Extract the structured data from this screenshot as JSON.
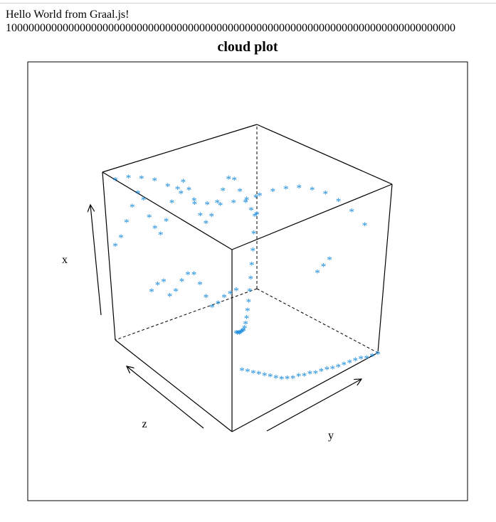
{
  "page": {
    "line1": "Hello World from Graal.js!",
    "line2": "1000000000000000000000000000000000000000000000000000000000000000000000000000000"
  },
  "chart_data": {
    "type": "scatter",
    "subtype": "3d-cloud",
    "title": "cloud plot",
    "xlabel": "x",
    "ylabel": "y",
    "zlabel": "z",
    "marker": "*",
    "marker_color": "#1f8fe0",
    "box": "wireframe cube, hidden edges dashed",
    "ticks": "none (arrows only)",
    "points": [
      {
        "y": 0.0,
        "z": 1.0,
        "x": 0.58
      },
      {
        "y": 0.0,
        "z": 0.96,
        "x": 0.62
      },
      {
        "y": 0.0,
        "z": 0.92,
        "x": 0.7
      },
      {
        "y": 0.0,
        "z": 0.88,
        "x": 0.78
      },
      {
        "y": 0.0,
        "z": 0.84,
        "x": 0.85
      },
      {
        "y": 0.0,
        "z": 0.8,
        "x": 0.8
      },
      {
        "y": 0.0,
        "z": 0.76,
        "x": 0.68
      },
      {
        "y": 0.0,
        "z": 0.72,
        "x": 0.6
      },
      {
        "y": 0.0,
        "z": 0.68,
        "x": 0.55
      },
      {
        "y": 0.0,
        "z": 0.64,
        "x": 0.62
      },
      {
        "y": 0.0,
        "z": 0.6,
        "x": 0.72
      },
      {
        "y": 0.0,
        "z": 0.56,
        "x": 0.79
      },
      {
        "y": 0.0,
        "z": 0.52,
        "x": 0.82
      },
      {
        "y": 0.0,
        "z": 0.48,
        "x": 0.76
      },
      {
        "y": 0.0,
        "z": 0.44,
        "x": 0.66
      },
      {
        "y": 0.0,
        "z": 0.4,
        "x": 0.58
      },
      {
        "y": 0.0,
        "z": 0.36,
        "x": 0.52
      },
      {
        "y": 0.0,
        "z": 0.32,
        "x": 0.55
      },
      {
        "y": 0.0,
        "z": 0.28,
        "x": 0.62
      },
      {
        "y": 0.0,
        "z": 0.24,
        "x": 0.68
      },
      {
        "y": 0.0,
        "z": 0.2,
        "x": 0.74
      },
      {
        "y": 0.0,
        "z": 0.16,
        "x": 0.72
      },
      {
        "y": 0.0,
        "z": 0.12,
        "x": 0.64
      },
      {
        "y": 0.0,
        "z": 0.08,
        "x": 0.56
      },
      {
        "y": 0.0,
        "z": 0.04,
        "x": 0.5
      },
      {
        "y": 0.0,
        "z": 0.0,
        "x": 0.46
      },
      {
        "y": 0.05,
        "z": 0.05,
        "x": 0.6
      },
      {
        "y": 0.1,
        "z": 0.1,
        "x": 0.52
      },
      {
        "y": 0.15,
        "z": 0.15,
        "x": 0.45
      },
      {
        "y": 0.2,
        "z": 0.2,
        "x": 0.38
      },
      {
        "y": 0.25,
        "z": 0.25,
        "x": 0.33
      },
      {
        "y": 0.3,
        "z": 0.3,
        "x": 0.28
      },
      {
        "y": 0.35,
        "z": 0.35,
        "x": 0.24
      },
      {
        "y": 0.4,
        "z": 0.4,
        "x": 0.21
      },
      {
        "y": 0.45,
        "z": 0.45,
        "x": 0.19
      },
      {
        "y": 0.5,
        "z": 0.5,
        "x": 0.18
      },
      {
        "y": 0.55,
        "z": 0.55,
        "x": 0.18
      },
      {
        "y": 0.6,
        "z": 0.6,
        "x": 0.19
      },
      {
        "y": 0.65,
        "z": 0.65,
        "x": 0.21
      },
      {
        "y": 0.7,
        "z": 0.7,
        "x": 0.24
      },
      {
        "y": 0.75,
        "z": 0.75,
        "x": 0.27
      },
      {
        "y": 0.8,
        "z": 0.8,
        "x": 0.3
      },
      {
        "y": 0.85,
        "z": 0.85,
        "x": 0.33
      },
      {
        "y": 0.9,
        "z": 0.9,
        "x": 0.37
      },
      {
        "y": 0.95,
        "z": 0.95,
        "x": 0.4
      },
      {
        "y": 1.0,
        "z": 1.0,
        "x": 0.44
      },
      {
        "y": 1.0,
        "z": 0.96,
        "x": 0.2
      },
      {
        "y": 1.0,
        "z": 0.92,
        "x": 0.18
      },
      {
        "y": 1.0,
        "z": 0.88,
        "x": 0.16
      },
      {
        "y": 1.0,
        "z": 0.84,
        "x": 0.14
      },
      {
        "y": 1.0,
        "z": 0.8,
        "x": 0.12
      },
      {
        "y": 1.0,
        "z": 0.76,
        "x": 0.1
      },
      {
        "y": 1.0,
        "z": 0.72,
        "x": 0.08
      },
      {
        "y": 1.0,
        "z": 0.68,
        "x": 0.06
      },
      {
        "y": 1.0,
        "z": 0.64,
        "x": 0.05
      },
      {
        "y": 1.0,
        "z": 0.6,
        "x": 0.04
      },
      {
        "y": 1.0,
        "z": 0.56,
        "x": 0.04
      },
      {
        "y": 1.0,
        "z": 0.52,
        "x": 0.03
      },
      {
        "y": 1.0,
        "z": 0.48,
        "x": 0.03
      },
      {
        "y": 1.0,
        "z": 0.44,
        "x": 0.02
      },
      {
        "y": 1.0,
        "z": 0.4,
        "x": 0.02
      },
      {
        "y": 1.0,
        "z": 0.36,
        "x": 0.02
      },
      {
        "y": 1.0,
        "z": 0.32,
        "x": 0.01
      },
      {
        "y": 1.0,
        "z": 0.28,
        "x": 0.01
      },
      {
        "y": 1.0,
        "z": 0.24,
        "x": 0.01
      },
      {
        "y": 1.0,
        "z": 0.2,
        "x": 0.01
      },
      {
        "y": 1.0,
        "z": 0.16,
        "x": 0.01
      },
      {
        "y": 1.0,
        "z": 0.12,
        "x": 0.01
      },
      {
        "y": 1.0,
        "z": 0.08,
        "x": 0.0
      },
      {
        "y": 1.0,
        "z": 0.04,
        "x": 0.0
      },
      {
        "y": 1.0,
        "z": 0.0,
        "x": 0.0
      },
      {
        "y": 0.95,
        "z": 0.05,
        "x": 0.78
      },
      {
        "y": 0.9,
        "z": 0.1,
        "x": 0.86
      },
      {
        "y": 0.85,
        "z": 0.15,
        "x": 0.92
      },
      {
        "y": 0.8,
        "z": 0.2,
        "x": 0.96
      },
      {
        "y": 0.75,
        "z": 0.25,
        "x": 0.98
      },
      {
        "y": 0.7,
        "z": 0.3,
        "x": 0.99
      },
      {
        "y": 0.65,
        "z": 0.35,
        "x": 0.98
      },
      {
        "y": 0.6,
        "z": 0.4,
        "x": 0.96
      },
      {
        "y": 0.55,
        "z": 0.45,
        "x": 0.93
      },
      {
        "y": 0.5,
        "z": 0.5,
        "x": 0.9
      },
      {
        "y": 0.45,
        "z": 0.55,
        "x": 0.88
      },
      {
        "y": 0.4,
        "z": 0.6,
        "x": 0.86
      },
      {
        "y": 0.35,
        "z": 0.65,
        "x": 0.86
      },
      {
        "y": 0.3,
        "z": 0.7,
        "x": 0.88
      },
      {
        "y": 0.25,
        "z": 0.75,
        "x": 0.92
      },
      {
        "y": 0.2,
        "z": 0.8,
        "x": 0.96
      },
      {
        "y": 0.15,
        "z": 0.85,
        "x": 0.99
      },
      {
        "y": 0.1,
        "z": 0.9,
        "x": 1.0
      },
      {
        "y": 0.05,
        "z": 0.95,
        "x": 1.0
      },
      {
        "y": 0.0,
        "z": 1.0,
        "x": 0.98
      },
      {
        "y": 0.3,
        "z": 1.0,
        "x": 0.42
      },
      {
        "y": 0.35,
        "z": 1.0,
        "x": 0.48
      },
      {
        "y": 0.4,
        "z": 1.0,
        "x": 0.52
      },
      {
        "y": 0.45,
        "z": 1.0,
        "x": 0.45
      },
      {
        "y": 0.5,
        "z": 1.0,
        "x": 0.5
      },
      {
        "y": 0.55,
        "z": 1.0,
        "x": 0.58
      },
      {
        "y": 0.6,
        "z": 1.0,
        "x": 0.64
      },
      {
        "y": 0.65,
        "z": 1.0,
        "x": 0.66
      },
      {
        "y": 0.7,
        "z": 1.0,
        "x": 0.62
      },
      {
        "y": 0.75,
        "z": 1.0,
        "x": 0.56
      },
      {
        "y": 0.8,
        "z": 1.0,
        "x": 0.52
      },
      {
        "y": 0.85,
        "z": 1.0,
        "x": 0.56
      },
      {
        "y": 0.9,
        "z": 1.0,
        "x": 0.62
      },
      {
        "y": 0.95,
        "z": 1.0,
        "x": 0.66
      },
      {
        "y": 1.0,
        "z": 1.0,
        "x": 0.7
      },
      {
        "y": 0.5,
        "z": 0.0,
        "x": 0.3
      },
      {
        "y": 0.55,
        "z": 0.0,
        "x": 0.36
      },
      {
        "y": 0.6,
        "z": 0.0,
        "x": 0.42
      }
    ]
  }
}
